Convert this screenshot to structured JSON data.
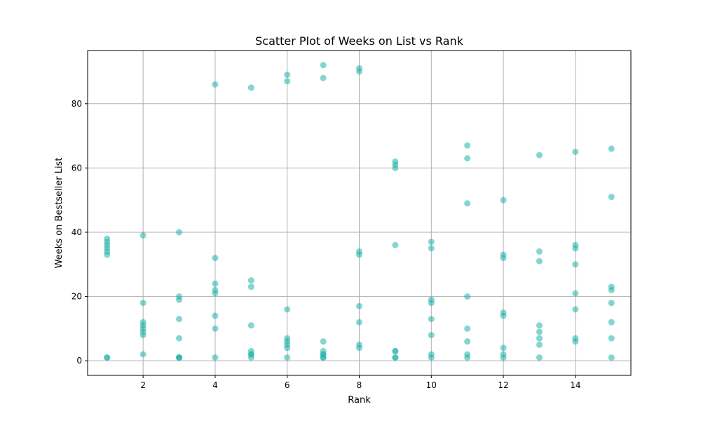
{
  "chart_data": {
    "type": "scatter",
    "title": "Scatter Plot of Weeks on List vs Rank",
    "xlabel": "Rank",
    "ylabel": "Weeks on Bestseller List",
    "xlim": [
      0.46,
      15.54
    ],
    "ylim": [
      -4.55,
      96.55
    ],
    "xticks": [
      2,
      4,
      6,
      8,
      10,
      12,
      14
    ],
    "yticks": [
      0,
      20,
      40,
      60,
      80
    ],
    "grid": true,
    "color": "#20b2aa",
    "alpha": 0.55,
    "points": [
      [
        1,
        38
      ],
      [
        1,
        37
      ],
      [
        1,
        36
      ],
      [
        1,
        35
      ],
      [
        1,
        34
      ],
      [
        1,
        33
      ],
      [
        1,
        1
      ],
      [
        1,
        1
      ],
      [
        2,
        39
      ],
      [
        2,
        18
      ],
      [
        2,
        12
      ],
      [
        2,
        11
      ],
      [
        2,
        10
      ],
      [
        2,
        9
      ],
      [
        2,
        8
      ],
      [
        2,
        2
      ],
      [
        3,
        40
      ],
      [
        3,
        20
      ],
      [
        3,
        19
      ],
      [
        3,
        13
      ],
      [
        3,
        7
      ],
      [
        3,
        1
      ],
      [
        3,
        1
      ],
      [
        3,
        1
      ],
      [
        4,
        86
      ],
      [
        4,
        32
      ],
      [
        4,
        24
      ],
      [
        4,
        22
      ],
      [
        4,
        21
      ],
      [
        4,
        14
      ],
      [
        4,
        10
      ],
      [
        4,
        1
      ],
      [
        5,
        85
      ],
      [
        5,
        25
      ],
      [
        5,
        23
      ],
      [
        5,
        11
      ],
      [
        5,
        3
      ],
      [
        5,
        2
      ],
      [
        5,
        2
      ],
      [
        5,
        1
      ],
      [
        6,
        89
      ],
      [
        6,
        87
      ],
      [
        6,
        16
      ],
      [
        6,
        7
      ],
      [
        6,
        6
      ],
      [
        6,
        5
      ],
      [
        6,
        4
      ],
      [
        6,
        1
      ],
      [
        7,
        92
      ],
      [
        7,
        88
      ],
      [
        7,
        6
      ],
      [
        7,
        3
      ],
      [
        7,
        2
      ],
      [
        7,
        2
      ],
      [
        7,
        1
      ],
      [
        7,
        1
      ],
      [
        8,
        91
      ],
      [
        8,
        90
      ],
      [
        8,
        34
      ],
      [
        8,
        33
      ],
      [
        8,
        17
      ],
      [
        8,
        12
      ],
      [
        8,
        5
      ],
      [
        8,
        4
      ],
      [
        9,
        62
      ],
      [
        9,
        61
      ],
      [
        9,
        60
      ],
      [
        9,
        36
      ],
      [
        9,
        3
      ],
      [
        9,
        3
      ],
      [
        9,
        1
      ],
      [
        9,
        1
      ],
      [
        10,
        37
      ],
      [
        10,
        35
      ],
      [
        10,
        19
      ],
      [
        10,
        18
      ],
      [
        10,
        13
      ],
      [
        10,
        8
      ],
      [
        10,
        2
      ],
      [
        10,
        1
      ],
      [
        11,
        67
      ],
      [
        11,
        63
      ],
      [
        11,
        49
      ],
      [
        11,
        20
      ],
      [
        11,
        10
      ],
      [
        11,
        6
      ],
      [
        11,
        2
      ],
      [
        11,
        1
      ],
      [
        12,
        50
      ],
      [
        12,
        33
      ],
      [
        12,
        32
      ],
      [
        12,
        15
      ],
      [
        12,
        14
      ],
      [
        12,
        4
      ],
      [
        12,
        2
      ],
      [
        12,
        1
      ],
      [
        13,
        64
      ],
      [
        13,
        34
      ],
      [
        13,
        31
      ],
      [
        13,
        11
      ],
      [
        13,
        9
      ],
      [
        13,
        7
      ],
      [
        13,
        5
      ],
      [
        13,
        1
      ],
      [
        14,
        65
      ],
      [
        14,
        36
      ],
      [
        14,
        35
      ],
      [
        14,
        30
      ],
      [
        14,
        21
      ],
      [
        14,
        16
      ],
      [
        14,
        7
      ],
      [
        14,
        6
      ],
      [
        15,
        66
      ],
      [
        15,
        51
      ],
      [
        15,
        23
      ],
      [
        15,
        22
      ],
      [
        15,
        18
      ],
      [
        15,
        12
      ],
      [
        15,
        7
      ],
      [
        15,
        1
      ]
    ]
  }
}
